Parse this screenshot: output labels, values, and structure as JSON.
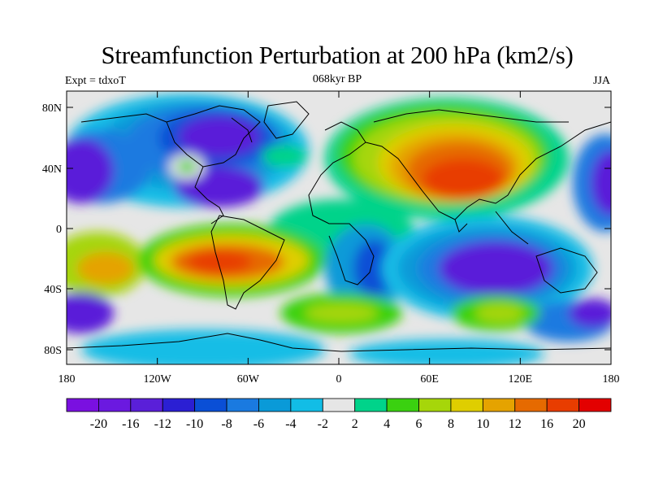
{
  "title": "Streamfunction Perturbation at 200 hPa (km2/s)",
  "left_label": "Expt = tdxoT",
  "center_label": "068kyr BP",
  "right_label": "JJA",
  "lat_ticks": [
    "80N",
    "40N",
    "0",
    "40S",
    "80S"
  ],
  "lon_ticks": [
    "180",
    "120W",
    "60W",
    "0",
    "60E",
    "120E",
    "180"
  ],
  "colorbar": {
    "labels": [
      "-20",
      "-16",
      "-12",
      "-10",
      "-8",
      "-6",
      "-4",
      "-2",
      "2",
      "4",
      "6",
      "8",
      "10",
      "12",
      "16",
      "20"
    ],
    "colors": [
      "#7a10e0",
      "#6b19e0",
      "#5a1fd9",
      "#2b1fd3",
      "#0a4fd6",
      "#1a7ae0",
      "#0a9ad8",
      "#12bde6",
      "#e6e6e6",
      "#00d38a",
      "#3ad110",
      "#a6d60a",
      "#dfce00",
      "#e5a300",
      "#e66a00",
      "#e83d00",
      "#e30000"
    ]
  }
}
